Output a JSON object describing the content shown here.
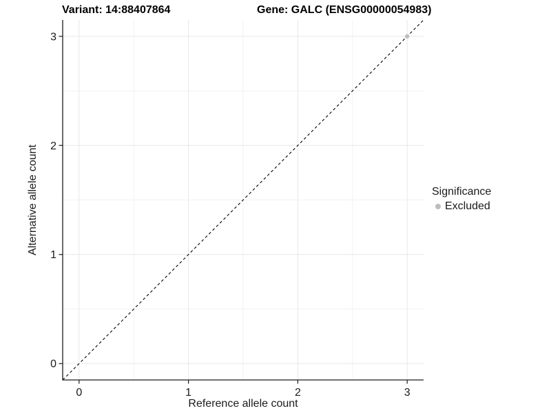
{
  "chart_data": {
    "type": "scatter",
    "title_left": "Variant: 14:88407864",
    "title_right": "Gene: GALC (ENSG00000054983)",
    "xlabel": "Reference allele count",
    "ylabel": "Alternative allele count",
    "x_ticks": [
      0,
      1,
      2,
      3
    ],
    "y_ticks": [
      0,
      1,
      2,
      3
    ],
    "x_minor_ticks": [
      0.5,
      1.5,
      2.5
    ],
    "y_minor_ticks": [
      0.5,
      1.5,
      2.5
    ],
    "xlim": [
      -0.15,
      3.15
    ],
    "ylim": [
      -0.15,
      3.15
    ],
    "grid": true,
    "identity_line": {
      "slope": 1,
      "intercept": 0,
      "style": "dashed",
      "color": "#000000"
    },
    "series": [
      {
        "name": "Excluded",
        "color": "#bdbdbd",
        "points": [
          [
            3,
            3
          ]
        ]
      }
    ],
    "legend": {
      "title": "Significance",
      "position": "right",
      "entries": [
        {
          "label": "Excluded",
          "color": "#bdbdbd",
          "marker": "circle"
        }
      ]
    },
    "colors": {
      "grid_major": "#e7e7e7",
      "grid_minor": "#f2f2f2",
      "axis": "#1a1a1a",
      "text": "#1a1a1a",
      "point": "#bdbdbd"
    }
  }
}
